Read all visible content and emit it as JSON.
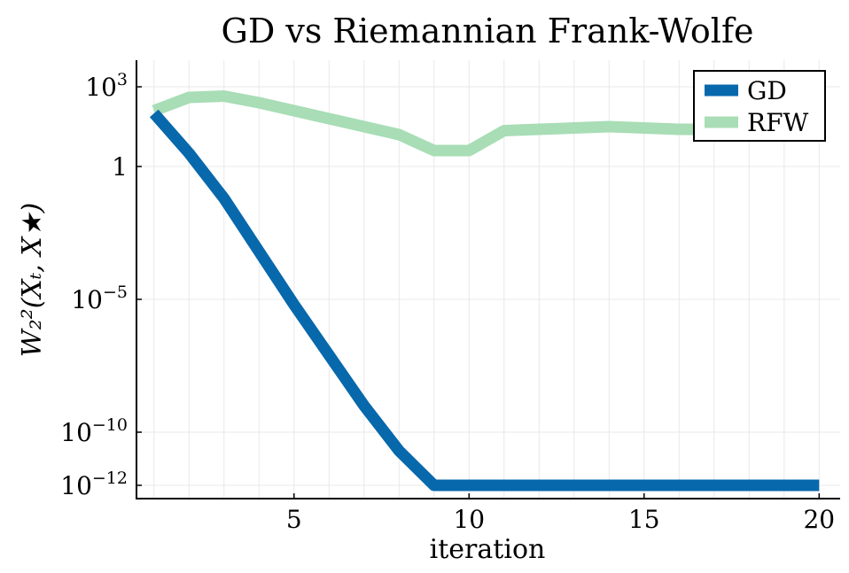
{
  "chart_data": {
    "type": "line",
    "title": "GD vs Riemannian Frank-Wolfe",
    "xlabel": "iteration",
    "ylabel": "W₂²(Xₜ, X★)",
    "y_scale": "log",
    "xlim": [
      0.5,
      20.6
    ],
    "ylim_log10": [
      -12.5,
      4
    ],
    "x_ticks": [
      {
        "value": 5,
        "label": "5"
      },
      {
        "value": 10,
        "label": "10"
      },
      {
        "value": 15,
        "label": "15"
      },
      {
        "value": 20,
        "label": "20"
      }
    ],
    "y_ticks": [
      {
        "log10": 3,
        "base": "10",
        "exp": "3"
      },
      {
        "log10": 0,
        "base": "1",
        "exp": ""
      },
      {
        "log10": -5,
        "base": "10",
        "exp": "−5"
      },
      {
        "log10": -10,
        "base": "10",
        "exp": "−10"
      },
      {
        "log10": -12,
        "base": "10",
        "exp": "−12"
      }
    ],
    "grid": true,
    "legend_position": "top-right",
    "series": [
      {
        "name": "GD",
        "color": "#0868ac",
        "x": [
          1,
          2,
          3,
          4,
          5,
          6,
          7,
          8,
          9,
          10,
          11,
          12,
          13,
          14,
          15,
          16,
          17,
          18,
          19,
          20
        ],
        "y_log10": [
          2.0,
          0.5,
          -1.2,
          -3.2,
          -5.2,
          -7.1,
          -9.0,
          -10.7,
          -12,
          -12,
          -12,
          -12,
          -12,
          -12,
          -12,
          -12,
          -12,
          -12,
          -12,
          -12
        ]
      },
      {
        "name": "RFW",
        "color": "#a8ddb5",
        "x": [
          1,
          2,
          3,
          4,
          5,
          6,
          7,
          8,
          9,
          10,
          11,
          12,
          13,
          14,
          15,
          16,
          17,
          18,
          19,
          20
        ],
        "y_log10": [
          2.1,
          2.6,
          2.65,
          2.4,
          2.1,
          1.8,
          1.5,
          1.2,
          0.6,
          0.6,
          1.35,
          1.4,
          1.45,
          1.5,
          1.45,
          1.4,
          1.4,
          1.4,
          1.4,
          1.4
        ]
      }
    ]
  }
}
